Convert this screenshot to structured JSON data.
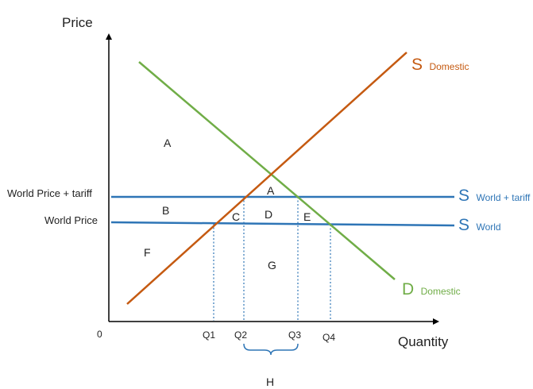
{
  "axes": {
    "y_title": "Price",
    "x_title": "Quantity",
    "origin": "0"
  },
  "price_levels": {
    "world_price_tariff": "World Price + tariff",
    "world_price": "World Price"
  },
  "curves": {
    "supply_domestic": {
      "letter": "S",
      "sub": "Domestic",
      "color": "#c55a11"
    },
    "demand_domestic": {
      "letter": "D",
      "sub": "Domestic",
      "color": "#70ad47"
    },
    "supply_world_tariff": {
      "letter": "S",
      "sub": "World + tariff",
      "color": "#2e75b6"
    },
    "supply_world": {
      "letter": "S",
      "sub": "World",
      "color": "#2e75b6"
    }
  },
  "quantities": [
    "Q1",
    "Q2",
    "Q3",
    "Q4"
  ],
  "regions": {
    "A_top": "A",
    "A_triangle": "A",
    "B": "B",
    "C": "C",
    "D": "D",
    "E": "E",
    "F": "F",
    "G": "G",
    "H": "H"
  },
  "colors": {
    "axis": "#000000",
    "text": "#222222",
    "dotted": "#2e75b6"
  }
}
